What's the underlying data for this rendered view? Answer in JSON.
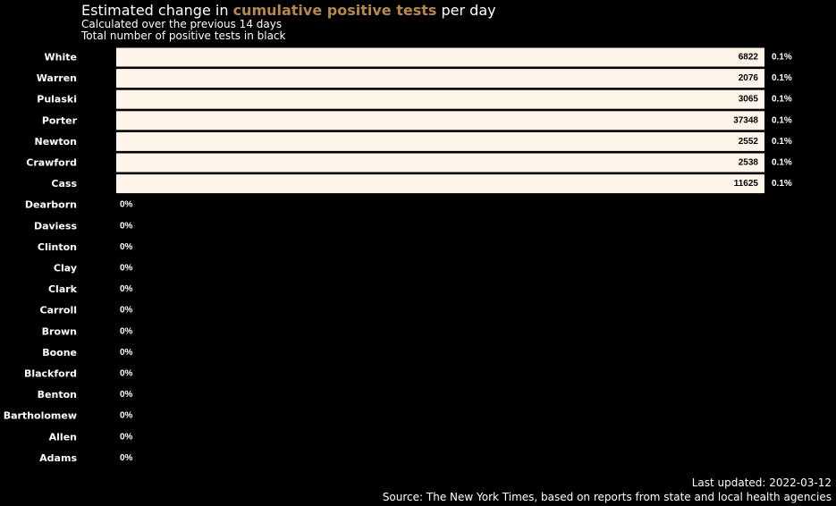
{
  "header": {
    "title_pre": "Estimated change in ",
    "title_highlight": "cumulative positive tests",
    "title_post": " per day",
    "subtitle1": "Calculated over the previous 14 days",
    "subtitle2": "Total number of positive tests in black"
  },
  "footer": {
    "updated": "Last updated: 2022-03-12",
    "source": "Source: The New York Times, based on reports from state and local health agencies"
  },
  "chart_data": {
    "type": "bar",
    "orientation": "horizontal",
    "categories": [
      "White",
      "Warren",
      "Pulaski",
      "Porter",
      "Newton",
      "Crawford",
      "Cass",
      "Dearborn",
      "Daviess",
      "Clinton",
      "Clay",
      "Clark",
      "Carroll",
      "Brown",
      "Boone",
      "Blackford",
      "Benton",
      "Bartholomew",
      "Allen",
      "Adams"
    ],
    "values": [
      0.1,
      0.1,
      0.1,
      0.1,
      0.1,
      0.1,
      0.1,
      0,
      0,
      0,
      0,
      0,
      0,
      0,
      0,
      0,
      0,
      0,
      0,
      0
    ],
    "value_labels": [
      "0.1%",
      "0.1%",
      "0.1%",
      "0.1%",
      "0.1%",
      "0.1%",
      "0.1%",
      "0%",
      "0%",
      "0%",
      "0%",
      "0%",
      "0%",
      "0%",
      "0%",
      "0%",
      "0%",
      "0%",
      "0%",
      "0%"
    ],
    "totals": [
      "6822",
      "2076",
      "3065",
      "37348",
      "2552",
      "2538",
      "11625",
      "",
      "",
      "",
      "",
      "",
      "",
      "",
      "",
      "",
      "",
      "",
      "",
      ""
    ],
    "xlim": [
      0,
      0.1
    ],
    "colors": {
      "bar": "#fff4ea",
      "bar_text": "#000000",
      "label": "#ffffff",
      "background": "#000000",
      "highlight": "#b5894a"
    }
  }
}
